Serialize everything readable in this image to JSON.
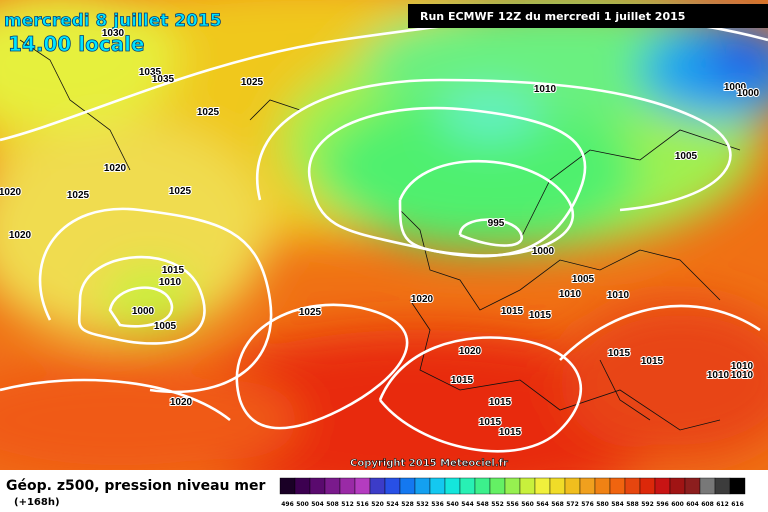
{
  "header": {
    "date": "mercredi 8 juillet 2015",
    "time": "14.00 locale",
    "run": "Run ECMWF 12Z du mercredi 1 juillet 2015"
  },
  "map": {
    "isobar_labels": [
      1030,
      1035,
      1035,
      1025,
      1025,
      1010,
      1000,
      1000,
      1020,
      1005,
      1020,
      1025,
      1025,
      1020,
      995,
      1000,
      1015,
      1010,
      1005,
      1010,
      1010,
      1000,
      1005,
      1020,
      1025,
      1015,
      1015,
      1020,
      1015,
      1015,
      1015,
      1010,
      1010,
      1010,
      1015,
      1020,
      1015,
      1015
    ],
    "copyright": "Copyright 2015 Meteociel.fr"
  },
  "legend": {
    "title": "Géop. z500, pression niveau mer",
    "subtitle": "(+168h)",
    "values": [
      496,
      500,
      504,
      508,
      512,
      516,
      520,
      524,
      528,
      532,
      536,
      540,
      544,
      548,
      552,
      556,
      560,
      564,
      568,
      572,
      576,
      580,
      584,
      588,
      592,
      596,
      600,
      604,
      608,
      612,
      616
    ],
    "colors": [
      "#1a0026",
      "#3c0050",
      "#5a0a6e",
      "#7a1a8c",
      "#9a2aa6",
      "#b43cc0",
      "#3c3cc8",
      "#2850e6",
      "#1478f0",
      "#14a0f0",
      "#14c8f0",
      "#14e6dc",
      "#28f0b4",
      "#3cf08c",
      "#64f064",
      "#96f050",
      "#c8f03c",
      "#f0f03c",
      "#f0dc28",
      "#f0be1e",
      "#f0a01e",
      "#f08214",
      "#f0640f",
      "#e6460f",
      "#dc280a",
      "#c81414",
      "#a01414",
      "#8c1e1e",
      "#787878",
      "#3c3c3c",
      "#000000"
    ]
  }
}
